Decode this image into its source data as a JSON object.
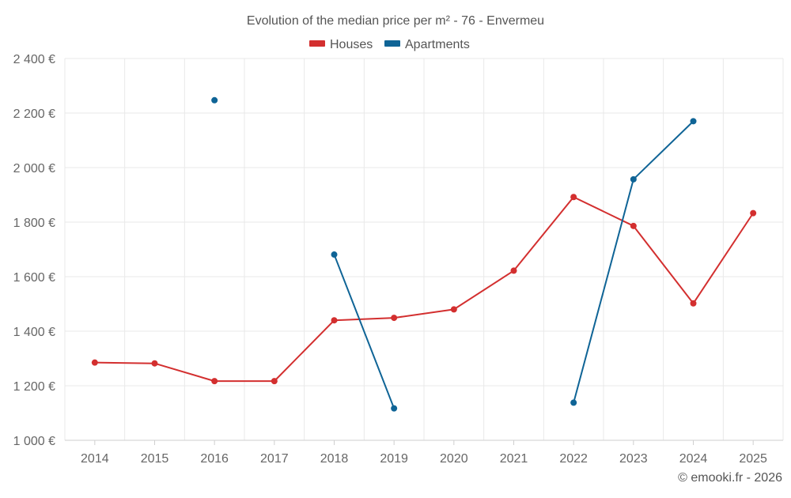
{
  "chart_data": {
    "type": "line",
    "title": "Evolution of the median price per m² - 76 - Envermeu",
    "xlabel": "",
    "ylabel": "",
    "categories": [
      "2014",
      "2015",
      "2016",
      "2017",
      "2018",
      "2019",
      "2020",
      "2021",
      "2022",
      "2023",
      "2024",
      "2025"
    ],
    "y_ticks": [
      "1 000 €",
      "1 200 €",
      "1 400 €",
      "1 600 €",
      "1 800 €",
      "2 000 €",
      "2 200 €",
      "2 400 €"
    ],
    "ylim": [
      1000,
      2400
    ],
    "grid": true,
    "legend_position": "top-center",
    "series": [
      {
        "name": "Houses",
        "color": "#d32f2f",
        "values": [
          1285,
          1282,
          1217,
          1217,
          1440,
          1449,
          1480,
          1622,
          1892,
          1786,
          1502,
          1833
        ]
      },
      {
        "name": "Apartments",
        "color": "#0f6496",
        "values": [
          null,
          null,
          2247,
          null,
          1681,
          1117,
          null,
          null,
          1138,
          1957,
          2170,
          null
        ]
      }
    ],
    "credit": "© emooki.fr - 2026"
  }
}
